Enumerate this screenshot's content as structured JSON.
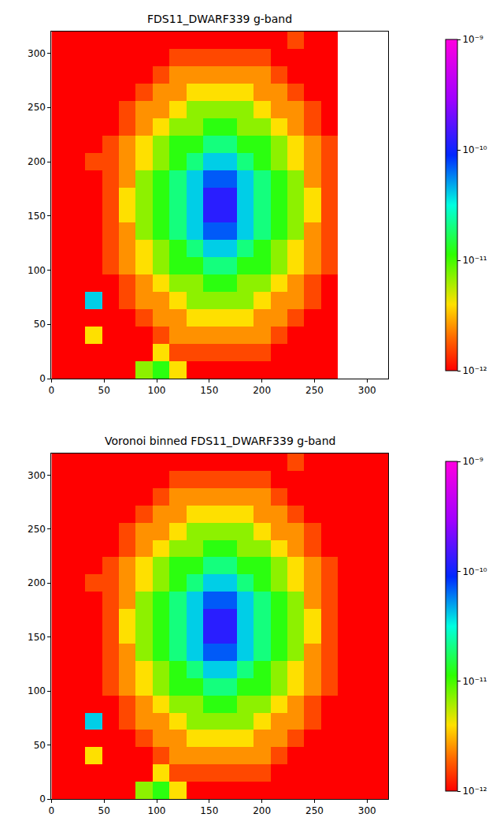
{
  "chart_data": [
    {
      "type": "heatmap",
      "title": "FDS11_DWARF339 g-band",
      "x": [
        8,
        24,
        40,
        56,
        72,
        88,
        104,
        120,
        136,
        152,
        168,
        184,
        200,
        216,
        232,
        248,
        264,
        280,
        296,
        312
      ],
      "y": [
        8,
        24,
        40,
        56,
        72,
        88,
        104,
        120,
        136,
        152,
        168,
        184,
        200,
        216,
        232,
        248,
        264,
        280,
        296,
        312
      ],
      "values": [
        [
          1e-12,
          1e-12,
          1e-12,
          1e-12,
          1e-12,
          7e-12,
          1.2e-11,
          4e-12,
          1e-12,
          1e-12,
          1e-12,
          1e-12,
          1e-12,
          1e-12,
          1e-12,
          1e-12,
          1e-12,
          null,
          null,
          null
        ],
        [
          1e-12,
          1e-12,
          1e-12,
          1e-12,
          1e-12,
          1e-12,
          4e-12,
          1.6e-12,
          1.6e-12,
          1.6e-12,
          1.6e-12,
          1.6e-12,
          1.6e-12,
          1e-12,
          1e-12,
          1e-12,
          1e-12,
          null,
          null,
          null
        ],
        [
          1e-12,
          1e-12,
          4e-12,
          1e-12,
          1e-12,
          1e-12,
          1.6e-12,
          2.5e-12,
          2.5e-12,
          2.5e-12,
          2.5e-12,
          2.5e-12,
          2.5e-12,
          1.6e-12,
          1e-12,
          1e-12,
          1e-12,
          null,
          null,
          null
        ],
        [
          1e-12,
          1e-12,
          1e-12,
          1e-12,
          1e-12,
          1.6e-12,
          2.5e-12,
          2.5e-12,
          4e-12,
          4e-12,
          4e-12,
          4e-12,
          2.5e-12,
          2.5e-12,
          1.6e-12,
          1e-12,
          1e-12,
          null,
          null,
          null
        ],
        [
          1e-12,
          1e-12,
          4e-11,
          1e-12,
          1.6e-12,
          2.5e-12,
          2.5e-12,
          4e-12,
          7e-12,
          7e-12,
          7e-12,
          7e-12,
          4e-12,
          2.5e-12,
          2.5e-12,
          1.6e-12,
          1e-12,
          null,
          null,
          null
        ],
        [
          1e-12,
          1e-12,
          1e-12,
          1e-12,
          1.6e-12,
          2.5e-12,
          4e-12,
          7e-12,
          7e-12,
          1.2e-11,
          1.2e-11,
          7e-12,
          7e-12,
          4e-12,
          2.5e-12,
          1.6e-12,
          1e-12,
          null,
          null,
          null
        ],
        [
          1e-12,
          1e-12,
          1e-12,
          1.6e-12,
          2.5e-12,
          4e-12,
          7e-12,
          1.2e-11,
          1.2e-11,
          2e-11,
          2e-11,
          1.2e-11,
          1.2e-11,
          7e-12,
          4e-12,
          2.5e-12,
          1.6e-12,
          null,
          null,
          null
        ],
        [
          1e-12,
          1e-12,
          1e-12,
          1.6e-12,
          2.5e-12,
          4e-12,
          7e-12,
          1.2e-11,
          2e-11,
          4e-11,
          4e-11,
          2e-11,
          1.2e-11,
          7e-12,
          4e-12,
          2.5e-12,
          1.6e-12,
          null,
          null,
          null
        ],
        [
          1e-12,
          1e-12,
          1e-12,
          1.6e-12,
          2.5e-12,
          7e-12,
          1.2e-11,
          2e-11,
          4e-11,
          7e-11,
          7e-11,
          4e-11,
          2e-11,
          1.2e-11,
          7e-12,
          2.5e-12,
          1.6e-12,
          null,
          null,
          null
        ],
        [
          1e-12,
          1e-12,
          1e-12,
          1.6e-12,
          4e-12,
          7e-12,
          1.2e-11,
          2e-11,
          4e-11,
          1.2e-10,
          1.2e-10,
          4e-11,
          2e-11,
          1.2e-11,
          7e-12,
          4e-12,
          1.6e-12,
          null,
          null,
          null
        ],
        [
          1e-12,
          1e-12,
          1e-12,
          1.6e-12,
          4e-12,
          7e-12,
          1.2e-11,
          2e-11,
          4e-11,
          1.2e-10,
          1.2e-10,
          4e-11,
          2e-11,
          1.2e-11,
          7e-12,
          4e-12,
          1.6e-12,
          null,
          null,
          null
        ],
        [
          1e-12,
          1e-12,
          1e-12,
          1.6e-12,
          2.5e-12,
          7e-12,
          1.2e-11,
          2e-11,
          4e-11,
          7e-11,
          7e-11,
          4e-11,
          2e-11,
          1.2e-11,
          7e-12,
          2.5e-12,
          1.6e-12,
          null,
          null,
          null
        ],
        [
          1e-12,
          1e-12,
          1.6e-12,
          1.6e-12,
          2.5e-12,
          4e-12,
          7e-12,
          1.2e-11,
          2e-11,
          4e-11,
          4e-11,
          2e-11,
          1.2e-11,
          7e-12,
          4e-12,
          2.5e-12,
          1.6e-12,
          null,
          null,
          null
        ],
        [
          1e-12,
          1e-12,
          1e-12,
          1.6e-12,
          2.5e-12,
          4e-12,
          7e-12,
          1.2e-11,
          1.2e-11,
          2e-11,
          2e-11,
          1.2e-11,
          1.2e-11,
          7e-12,
          4e-12,
          2.5e-12,
          1.6e-12,
          null,
          null,
          null
        ],
        [
          1e-12,
          1e-12,
          1e-12,
          1e-12,
          1.6e-12,
          2.5e-12,
          4e-12,
          7e-12,
          7e-12,
          1.2e-11,
          1.2e-11,
          7e-12,
          7e-12,
          4e-12,
          2.5e-12,
          1.6e-12,
          1e-12,
          null,
          null,
          null
        ],
        [
          1e-12,
          1e-12,
          1e-12,
          1e-12,
          1.6e-12,
          2.5e-12,
          2.5e-12,
          4e-12,
          7e-12,
          7e-12,
          7e-12,
          7e-12,
          4e-12,
          2.5e-12,
          2.5e-12,
          1.6e-12,
          1e-12,
          null,
          null,
          null
        ],
        [
          1e-12,
          1e-12,
          1e-12,
          1e-12,
          1e-12,
          1.6e-12,
          2.5e-12,
          2.5e-12,
          4e-12,
          4e-12,
          4e-12,
          4e-12,
          2.5e-12,
          2.5e-12,
          1.6e-12,
          1e-12,
          1e-12,
          null,
          null,
          null
        ],
        [
          1e-12,
          1e-12,
          1e-12,
          1e-12,
          1e-12,
          1e-12,
          1.6e-12,
          2.5e-12,
          2.5e-12,
          2.5e-12,
          2.5e-12,
          2.5e-12,
          2.5e-12,
          1.6e-12,
          1e-12,
          1e-12,
          1e-12,
          null,
          null,
          null
        ],
        [
          1e-12,
          1e-12,
          1e-12,
          1e-12,
          1e-12,
          1e-12,
          1e-12,
          1.6e-12,
          1.6e-12,
          1.6e-12,
          1.6e-12,
          1.6e-12,
          1.6e-12,
          1e-12,
          1e-12,
          1e-12,
          1e-12,
          null,
          null,
          null
        ],
        [
          1e-12,
          1e-12,
          1e-12,
          1e-12,
          1e-12,
          1e-12,
          1e-12,
          1e-12,
          1e-12,
          1e-12,
          1e-12,
          1e-12,
          1e-12,
          1e-12,
          1.6e-12,
          1e-12,
          1e-12,
          null,
          null,
          null
        ]
      ],
      "xlim": [
        0,
        320
      ],
      "ylim": [
        0,
        320
      ],
      "xticks": [
        0,
        50,
        100,
        150,
        200,
        250,
        300
      ],
      "yticks": [
        0,
        50,
        100,
        150,
        200,
        250,
        300
      ],
      "grid": false,
      "colorbar": {
        "log": true,
        "range": [
          1e-12,
          1e-09
        ],
        "ticks": [
          {
            "value": 1e-12,
            "label": "10⁻¹²"
          },
          {
            "value": 1e-11,
            "label": "10⁻¹¹"
          },
          {
            "value": 1e-10,
            "label": "10⁻¹⁰"
          },
          {
            "value": 1e-09,
            "label": "10⁻⁹"
          }
        ]
      }
    },
    {
      "type": "heatmap",
      "title": "Voronoi binned FDS11_DWARF339 g-band",
      "x": [
        8,
        24,
        40,
        56,
        72,
        88,
        104,
        120,
        136,
        152,
        168,
        184,
        200,
        216,
        232,
        248,
        264,
        280,
        296,
        312
      ],
      "y": [
        8,
        24,
        40,
        56,
        72,
        88,
        104,
        120,
        136,
        152,
        168,
        184,
        200,
        216,
        232,
        248,
        264,
        280,
        296,
        312
      ],
      "values": [
        [
          1e-12,
          1e-12,
          1e-12,
          1e-12,
          1e-12,
          7e-12,
          1.2e-11,
          4e-12,
          1e-12,
          1e-12,
          1e-12,
          1e-12,
          1e-12,
          1e-12,
          1e-12,
          1e-12,
          1e-12,
          1e-12,
          1e-12,
          1e-12
        ],
        [
          1e-12,
          1e-12,
          1e-12,
          1e-12,
          1e-12,
          1e-12,
          4e-12,
          1.6e-12,
          1.6e-12,
          1.6e-12,
          1.6e-12,
          1.6e-12,
          1.6e-12,
          1e-12,
          1e-12,
          1e-12,
          1e-12,
          1e-12,
          1e-12,
          1e-12
        ],
        [
          1e-12,
          1e-12,
          4e-12,
          1e-12,
          1e-12,
          1e-12,
          1.6e-12,
          2.5e-12,
          2.5e-12,
          2.5e-12,
          2.5e-12,
          2.5e-12,
          2.5e-12,
          1.6e-12,
          1e-12,
          1e-12,
          1e-12,
          1e-12,
          1e-12,
          1e-12
        ],
        [
          1e-12,
          1e-12,
          1e-12,
          1e-12,
          1e-12,
          1.6e-12,
          2.5e-12,
          2.5e-12,
          4e-12,
          4e-12,
          4e-12,
          4e-12,
          2.5e-12,
          2.5e-12,
          1.6e-12,
          1e-12,
          1e-12,
          1e-12,
          1e-12,
          1e-12
        ],
        [
          1e-12,
          1e-12,
          4e-11,
          1e-12,
          1.6e-12,
          2.5e-12,
          2.5e-12,
          4e-12,
          7e-12,
          7e-12,
          7e-12,
          7e-12,
          4e-12,
          2.5e-12,
          2.5e-12,
          1.6e-12,
          1e-12,
          1e-12,
          1e-12,
          1e-12
        ],
        [
          1e-12,
          1e-12,
          1e-12,
          1e-12,
          1.6e-12,
          2.5e-12,
          4e-12,
          7e-12,
          7e-12,
          1.2e-11,
          1.2e-11,
          7e-12,
          7e-12,
          4e-12,
          2.5e-12,
          1.6e-12,
          1e-12,
          1e-12,
          1e-12,
          1e-12
        ],
        [
          1e-12,
          1e-12,
          1e-12,
          1.6e-12,
          2.5e-12,
          4e-12,
          7e-12,
          1.2e-11,
          1.2e-11,
          2e-11,
          2e-11,
          1.2e-11,
          1.2e-11,
          7e-12,
          4e-12,
          2.5e-12,
          1.6e-12,
          1e-12,
          1e-12,
          1e-12
        ],
        [
          1e-12,
          1e-12,
          1e-12,
          1.6e-12,
          2.5e-12,
          4e-12,
          7e-12,
          1.2e-11,
          2e-11,
          4e-11,
          4e-11,
          2e-11,
          1.2e-11,
          7e-12,
          4e-12,
          2.5e-12,
          1.6e-12,
          1e-12,
          1e-12,
          1e-12
        ],
        [
          1e-12,
          1e-12,
          1e-12,
          1.6e-12,
          2.5e-12,
          7e-12,
          1.2e-11,
          2e-11,
          4e-11,
          7e-11,
          7e-11,
          4e-11,
          2e-11,
          1.2e-11,
          7e-12,
          2.5e-12,
          1.6e-12,
          1e-12,
          1e-12,
          1e-12
        ],
        [
          1e-12,
          1e-12,
          1e-12,
          1.6e-12,
          4e-12,
          7e-12,
          1.2e-11,
          2e-11,
          4e-11,
          1.2e-10,
          1.2e-10,
          4e-11,
          2e-11,
          1.2e-11,
          7e-12,
          4e-12,
          1.6e-12,
          1e-12,
          1e-12,
          1e-12
        ],
        [
          1e-12,
          1e-12,
          1e-12,
          1.6e-12,
          4e-12,
          7e-12,
          1.2e-11,
          2e-11,
          4e-11,
          1.2e-10,
          1.2e-10,
          4e-11,
          2e-11,
          1.2e-11,
          7e-12,
          4e-12,
          1.6e-12,
          1e-12,
          1e-12,
          1e-12
        ],
        [
          1e-12,
          1e-12,
          1e-12,
          1.6e-12,
          2.5e-12,
          7e-12,
          1.2e-11,
          2e-11,
          4e-11,
          7e-11,
          7e-11,
          4e-11,
          2e-11,
          1.2e-11,
          7e-12,
          2.5e-12,
          1.6e-12,
          1e-12,
          1e-12,
          1e-12
        ],
        [
          1e-12,
          1e-12,
          1.6e-12,
          1.6e-12,
          2.5e-12,
          4e-12,
          7e-12,
          1.2e-11,
          2e-11,
          4e-11,
          4e-11,
          2e-11,
          1.2e-11,
          7e-12,
          4e-12,
          2.5e-12,
          1.6e-12,
          1e-12,
          1e-12,
          1e-12
        ],
        [
          1e-12,
          1e-12,
          1e-12,
          1.6e-12,
          2.5e-12,
          4e-12,
          7e-12,
          1.2e-11,
          1.2e-11,
          2e-11,
          2e-11,
          1.2e-11,
          1.2e-11,
          7e-12,
          4e-12,
          2.5e-12,
          1.6e-12,
          1e-12,
          1e-12,
          1e-12
        ],
        [
          1e-12,
          1e-12,
          1e-12,
          1e-12,
          1.6e-12,
          2.5e-12,
          4e-12,
          7e-12,
          7e-12,
          1.2e-11,
          1.2e-11,
          7e-12,
          7e-12,
          4e-12,
          2.5e-12,
          1.6e-12,
          1e-12,
          1e-12,
          1e-12,
          1e-12
        ],
        [
          1e-12,
          1e-12,
          1e-12,
          1e-12,
          1.6e-12,
          2.5e-12,
          2.5e-12,
          4e-12,
          7e-12,
          7e-12,
          7e-12,
          7e-12,
          4e-12,
          2.5e-12,
          2.5e-12,
          1.6e-12,
          1e-12,
          1e-12,
          1e-12,
          1e-12
        ],
        [
          1e-12,
          1e-12,
          1e-12,
          1e-12,
          1e-12,
          1.6e-12,
          2.5e-12,
          2.5e-12,
          4e-12,
          4e-12,
          4e-12,
          4e-12,
          2.5e-12,
          2.5e-12,
          1.6e-12,
          1e-12,
          1e-12,
          1e-12,
          1e-12,
          1e-12
        ],
        [
          1e-12,
          1e-12,
          1e-12,
          1e-12,
          1e-12,
          1e-12,
          1.6e-12,
          2.5e-12,
          2.5e-12,
          2.5e-12,
          2.5e-12,
          2.5e-12,
          2.5e-12,
          1.6e-12,
          1e-12,
          1e-12,
          1e-12,
          1e-12,
          1e-12,
          1e-12
        ],
        [
          1e-12,
          1e-12,
          1e-12,
          1e-12,
          1e-12,
          1e-12,
          1e-12,
          1.6e-12,
          1.6e-12,
          1.6e-12,
          1.6e-12,
          1.6e-12,
          1.6e-12,
          1e-12,
          1e-12,
          1e-12,
          1e-12,
          1e-12,
          1e-12,
          1e-12
        ],
        [
          1e-12,
          1e-12,
          1e-12,
          1e-12,
          1e-12,
          1e-12,
          1e-12,
          1e-12,
          1e-12,
          1e-12,
          1e-12,
          1e-12,
          1e-12,
          1e-12,
          1.6e-12,
          1e-12,
          1e-12,
          1e-12,
          1e-12,
          1e-12
        ]
      ],
      "xlim": [
        0,
        320
      ],
      "ylim": [
        0,
        320
      ],
      "xticks": [
        0,
        50,
        100,
        150,
        200,
        250,
        300
      ],
      "yticks": [
        0,
        50,
        100,
        150,
        200,
        250,
        300
      ],
      "grid": false,
      "colorbar": {
        "log": true,
        "range": [
          1e-12,
          1e-09
        ],
        "ticks": [
          {
            "value": 1e-12,
            "label": "10⁻¹²"
          },
          {
            "value": 1e-11,
            "label": "10⁻¹¹"
          },
          {
            "value": 1e-10,
            "label": "10⁻¹⁰"
          },
          {
            "value": 1e-09,
            "label": "10⁻⁹"
          }
        ]
      }
    }
  ]
}
